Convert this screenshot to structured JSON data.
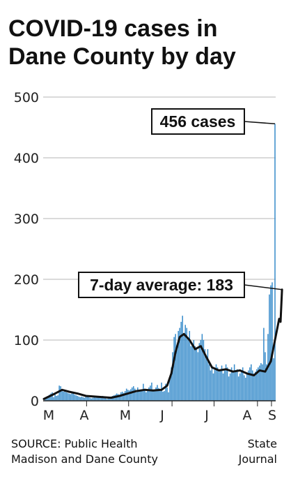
{
  "chart_data": {
    "type": "bar",
    "title_lines": [
      "COVID-19 cases in",
      "Dane County by day"
    ],
    "y_ticks": [
      0,
      100,
      200,
      300,
      400,
      500
    ],
    "ylim": [
      0,
      500
    ],
    "month_labels": [
      "M",
      "A",
      "M",
      "J",
      "J",
      "A",
      "S"
    ],
    "series": [
      {
        "values": [
          0,
          3,
          5,
          8,
          10,
          12,
          14,
          6,
          10,
          8,
          9,
          25,
          24,
          18,
          15,
          16,
          14,
          13,
          12,
          11,
          12,
          15,
          10,
          9,
          8,
          7,
          6,
          7,
          6,
          5,
          7,
          8,
          6,
          5,
          4,
          5,
          6,
          5,
          7,
          6,
          5,
          6,
          8,
          5,
          4,
          3,
          5,
          6,
          7,
          8,
          9,
          10,
          12,
          11,
          10,
          14,
          15,
          13,
          16,
          20,
          18,
          17,
          19,
          22,
          24,
          20,
          14,
          22,
          17,
          16,
          19,
          28,
          20,
          14,
          16,
          22,
          25,
          30,
          18,
          18,
          22,
          26,
          21,
          16,
          30,
          15,
          16,
          28,
          22,
          14,
          40,
          55,
          80,
          105,
          110,
          90,
          115,
          120,
          130,
          140,
          110,
          125,
          120,
          100,
          115,
          90,
          95,
          100,
          90,
          85,
          80,
          95,
          100,
          110,
          100,
          85,
          70,
          85,
          60,
          50,
          55,
          45,
          52,
          60,
          55,
          48,
          50,
          58,
          45,
          50,
          60,
          55,
          40,
          45,
          55,
          50,
          60,
          48,
          52,
          40,
          45,
          50,
          55,
          42,
          38,
          45,
          50,
          55,
          60,
          50,
          45,
          48,
          52,
          55,
          58,
          62,
          60,
          120,
          80,
          60,
          110,
          175,
          190,
          195,
          70,
          456
        ],
        "averages": [
          [
            0,
            3
          ],
          [
            8,
            12
          ],
          [
            13,
            18
          ],
          [
            18,
            15
          ],
          [
            24,
            12
          ],
          [
            30,
            8
          ],
          [
            36,
            7
          ],
          [
            42,
            6
          ],
          [
            48,
            5
          ],
          [
            54,
            8
          ],
          [
            60,
            12
          ],
          [
            66,
            16
          ],
          [
            72,
            18
          ],
          [
            78,
            17
          ],
          [
            84,
            18
          ],
          [
            88,
            25
          ],
          [
            91,
            45
          ],
          [
            94,
            80
          ],
          [
            97,
            105
          ],
          [
            100,
            110
          ],
          [
            104,
            100
          ],
          [
            108,
            85
          ],
          [
            112,
            90
          ],
          [
            116,
            72
          ],
          [
            120,
            55
          ],
          [
            125,
            50
          ],
          [
            130,
            52
          ],
          [
            135,
            48
          ],
          [
            140,
            50
          ],
          [
            145,
            45
          ],
          [
            150,
            42
          ],
          [
            154,
            50
          ],
          [
            158,
            48
          ],
          [
            162,
            65
          ],
          [
            165,
            100
          ],
          [
            168,
            135
          ],
          [
            169,
            130
          ],
          [
            170,
            183
          ]
        ]
      }
    ],
    "callouts": [
      {
        "label": "456 cases",
        "value": 456
      },
      {
        "label": "7-day average: 183",
        "value": 183
      }
    ],
    "source": [
      "SOURCE: Public Health",
      "Madison and Dane County"
    ],
    "credit": [
      "State",
      "Journal"
    ]
  }
}
